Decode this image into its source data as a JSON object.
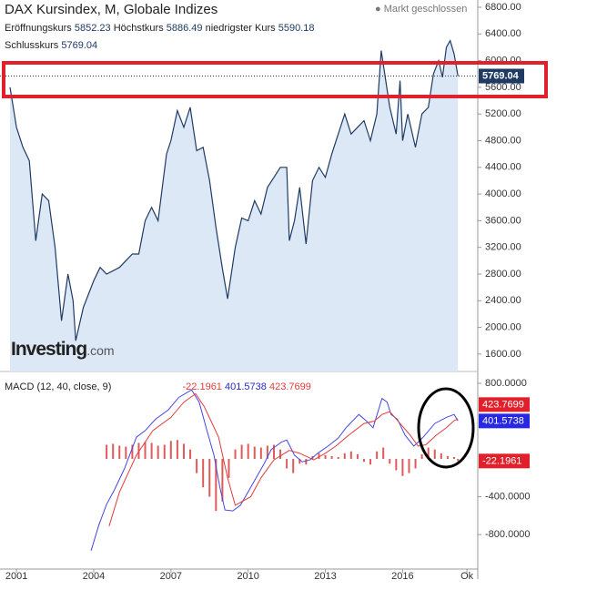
{
  "chart_data": [
    {
      "type": "area",
      "title": "DAX Kursindex, M, Globale Indizes",
      "status": "Markt geschlossen",
      "stats": [
        {
          "label": "Eröffnungskurs",
          "value": 5852.23
        },
        {
          "label": "Höchstkurs",
          "value": 5886.49
        },
        {
          "label": "niedrigster Kurs",
          "value": 5590.18
        },
        {
          "label": "Schlusskurs",
          "value": 5769.04
        }
      ],
      "logo": "Investing",
      "logo_suffix": ".com",
      "color": "#1f3b63",
      "fill": "#dce8f6",
      "x": [
        2000.75,
        2001.0,
        2001.25,
        2001.5,
        2001.75,
        2002.0,
        2002.25,
        2002.5,
        2002.75,
        2003.0,
        2003.2,
        2003.3,
        2003.6,
        2004.0,
        2004.25,
        2004.5,
        2005.0,
        2005.5,
        2005.75,
        2006.0,
        2006.25,
        2006.5,
        2006.83,
        2007.0,
        2007.25,
        2007.5,
        2007.75,
        2008.0,
        2008.25,
        2008.5,
        2008.75,
        2009.0,
        2009.2,
        2009.5,
        2009.75,
        2010.0,
        2010.25,
        2010.5,
        2010.75,
        2011.0,
        2011.25,
        2011.5,
        2011.6,
        2011.8,
        2012.0,
        2012.25,
        2012.5,
        2012.75,
        2013.0,
        2013.25,
        2013.5,
        2013.75,
        2014.0,
        2014.25,
        2014.5,
        2014.75,
        2015.0,
        2015.17,
        2015.5,
        2015.75,
        2015.9,
        2016.0,
        2016.2,
        2016.5,
        2016.75,
        2017.0,
        2017.2,
        2017.4,
        2017.55,
        2017.7,
        2017.85,
        2018.0,
        2018.15
      ],
      "values": [
        5600,
        5000,
        4700,
        4500,
        3300,
        4000,
        3900,
        3200,
        2100,
        2800,
        2400,
        1800,
        2300,
        2700,
        2900,
        2800,
        2900,
        3100,
        3100,
        3600,
        3800,
        3600,
        4600,
        4800,
        5250,
        5000,
        5300,
        4650,
        4700,
        4200,
        3500,
        2880,
        2430,
        3200,
        3640,
        3600,
        3900,
        3700,
        4100,
        4250,
        4400,
        4400,
        3300,
        3600,
        4100,
        3250,
        4200,
        4400,
        4250,
        4600,
        4900,
        5200,
        4900,
        5000,
        5100,
        4800,
        5200,
        6150,
        5300,
        4900,
        5700,
        4800,
        5200,
        4700,
        5200,
        5300,
        5800,
        6000,
        5750,
        6200,
        6300,
        6100,
        5769.04
      ],
      "ylim": [
        1339,
        6909
      ],
      "yticks": [
        {
          "value": 1600,
          "label": "1600.00"
        },
        {
          "value": 2000,
          "label": "2000.00"
        },
        {
          "value": 2400,
          "label": "2400.00"
        },
        {
          "value": 2800,
          "label": "2800.00"
        },
        {
          "value": 3200,
          "label": "3200.00"
        },
        {
          "value": 3600,
          "label": "3600.00"
        },
        {
          "value": 4000,
          "label": "4000.00"
        },
        {
          "value": 4400,
          "label": "4400.00"
        },
        {
          "value": 4800,
          "label": "4800.00"
        },
        {
          "value": 5200,
          "label": "5200.00"
        },
        {
          "value": 5600,
          "label": "5600.00"
        },
        {
          "value": 6000,
          "label": "6000.00"
        },
        {
          "value": 6400,
          "label": "6400.00"
        },
        {
          "value": 6800,
          "label": "6800.00"
        }
      ],
      "xlim": [
        2000.36,
        2018.92
      ]
    },
    {
      "type": "macd",
      "title": "MACD (12, 40, close, 9)",
      "series": [
        {
          "kind": "bar",
          "color": "#e05a5a",
          "x": [
            2004.5,
            2004.75,
            2005.0,
            2005.25,
            2005.5,
            2005.75,
            2006.0,
            2006.25,
            2006.5,
            2006.75,
            2007.0,
            2007.25,
            2007.5,
            2007.75,
            2008.0,
            2008.25,
            2008.5,
            2008.75,
            2009.0,
            2009.25,
            2009.5,
            2009.75,
            2010.0,
            2010.25,
            2010.5,
            2010.75,
            2011.0,
            2011.25,
            2011.5,
            2011.75,
            2012.0,
            2012.25,
            2012.5,
            2012.75,
            2013.0,
            2013.25,
            2013.5,
            2013.75,
            2014.0,
            2014.25,
            2014.5,
            2014.75,
            2015.0,
            2015.25,
            2015.5,
            2015.75,
            2016.0,
            2016.25,
            2016.5,
            2016.75,
            2017.0,
            2017.25,
            2017.5,
            2017.75,
            2018.0,
            2018.15
          ],
          "values": [
            150,
            160,
            140,
            130,
            150,
            170,
            180,
            170,
            140,
            150,
            190,
            200,
            160,
            100,
            -150,
            -300,
            -400,
            -550,
            -450,
            -200,
            100,
            150,
            160,
            130,
            120,
            140,
            150,
            100,
            -100,
            -150,
            -50,
            -60,
            30,
            60,
            40,
            30,
            20,
            60,
            80,
            50,
            -30,
            -60,
            80,
            120,
            -50,
            -120,
            -180,
            -150,
            -100,
            50,
            120,
            100,
            60,
            30,
            20,
            -22.1961
          ]
        },
        {
          "kind": "line",
          "color": "#4646e0",
          "x": [
            2003.9,
            2004.2,
            2004.5,
            2004.8,
            2005.2,
            2005.66,
            2006.0,
            2006.4,
            2006.9,
            2007.3,
            2007.8,
            2008.1,
            2008.4,
            2008.67,
            2008.9,
            2009.1,
            2009.4,
            2009.7,
            2010.1,
            2010.6,
            2010.9,
            2011.3,
            2011.5,
            2011.8,
            2012.1,
            2012.4,
            2012.7,
            2013.1,
            2013.5,
            2013.8,
            2014.3,
            2014.6,
            2014.85,
            2015.2,
            2015.4,
            2015.55,
            2015.8,
            2016.1,
            2016.44,
            2016.8,
            2017.25,
            2017.7,
            2018.0,
            2018.15
          ],
          "values": [
            -970,
            -700,
            -480,
            -330,
            -100,
            230,
            300,
            420,
            520,
            650,
            730,
            600,
            300,
            40,
            -300,
            -540,
            -550,
            -490,
            -300,
            -60,
            100,
            180,
            200,
            40,
            -30,
            -10,
            60,
            135,
            220,
            330,
            470,
            400,
            330,
            640,
            600,
            470,
            420,
            250,
            135,
            230,
            375,
            440,
            470,
            401.5738
          ]
        },
        {
          "kind": "line",
          "color": "#e03c3c",
          "x": [
            2004.6,
            2005.0,
            2005.66,
            2006.3,
            2007.0,
            2007.5,
            2007.96,
            2008.3,
            2008.85,
            2009.2,
            2009.5,
            2010.1,
            2010.5,
            2011.0,
            2011.6,
            2012.0,
            2012.55,
            2013.0,
            2013.4,
            2013.9,
            2014.5,
            2014.9,
            2015.2,
            2015.5,
            2015.9,
            2016.3,
            2016.6,
            2016.9,
            2017.3,
            2017.7,
            2018.0,
            2018.15
          ],
          "values": [
            -710,
            -350,
            40,
            300,
            440,
            600,
            690,
            550,
            230,
            -200,
            -490,
            -400,
            -200,
            -10,
            90,
            60,
            -10,
            60,
            135,
            250,
            375,
            400,
            470,
            500,
            375,
            250,
            135,
            150,
            250,
            330,
            405,
            423.7699
          ]
        }
      ],
      "ylim": [
        -1165,
        925
      ],
      "yticks": [
        {
          "value": 800,
          "label": "800.0000"
        },
        {
          "value": -400,
          "label": "-400.0000"
        },
        {
          "value": -800,
          "label": "-800.0000"
        }
      ],
      "xlim": [
        2000.36,
        2018.92
      ],
      "xticks": [
        2001,
        2004,
        2007,
        2010,
        2013,
        2016,
        {
          "value": 2018.5,
          "label": "Ok"
        }
      ]
    }
  ]
}
